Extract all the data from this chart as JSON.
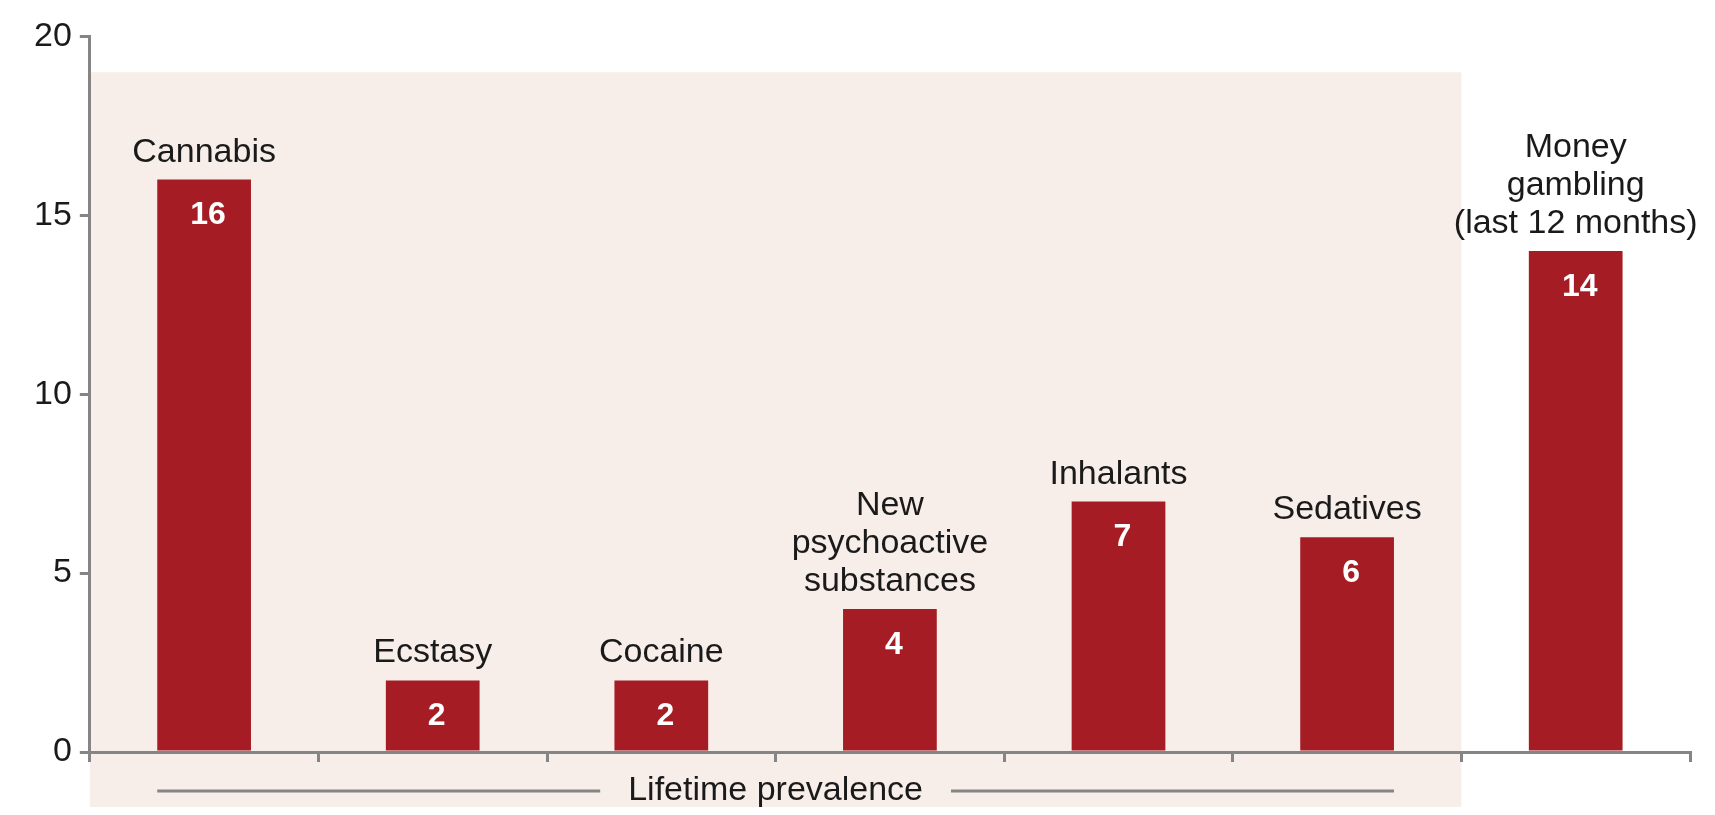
{
  "chart_data": {
    "type": "bar",
    "categories": [
      "Cannabis",
      "Ecstasy",
      "Cocaine",
      "New psychoactive substances",
      "Inhalants",
      "Sedatives",
      "Money gambling (last 12 months)"
    ],
    "values": [
      16,
      2,
      2,
      4,
      7,
      6,
      14
    ],
    "color": "#a51c24",
    "ylim": [
      0,
      20
    ],
    "yticks": [
      0,
      5,
      10,
      15,
      20
    ],
    "grid": false,
    "legend": false,
    "data_labels": true,
    "bands": [
      {
        "axis": "x",
        "from": "Cannabis",
        "to": "Sedatives",
        "label": "Lifetime prevalence",
        "color": "#f7ede9"
      }
    ]
  }
}
